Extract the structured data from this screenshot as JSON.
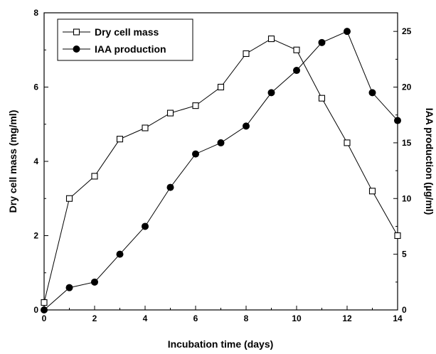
{
  "chart_data": {
    "type": "line",
    "xlabel": "Incubation time (days)",
    "ylabel_left": "Dry cell mass (mg/ml)",
    "ylabel_right": "IAA production (µg/ml)",
    "xlim": [
      0,
      14
    ],
    "ylim_left": [
      0,
      8
    ],
    "ylim_right": [
      0,
      26.67
    ],
    "x_ticks": [
      0,
      2,
      4,
      6,
      8,
      10,
      12,
      14
    ],
    "y_left_ticks": [
      0,
      2,
      4,
      6,
      8
    ],
    "y_right_ticks": [
      0,
      5,
      10,
      15,
      20,
      25
    ],
    "grid": false,
    "legend_position": "top-left",
    "series": [
      {
        "name": "Dry cell mass",
        "axis": "left",
        "marker": "open-square",
        "x": [
          0,
          1,
          2,
          3,
          4,
          5,
          6,
          7,
          8,
          9,
          10,
          11,
          12,
          13,
          14
        ],
        "values": [
          0.2,
          3.0,
          3.6,
          4.6,
          4.9,
          5.3,
          5.5,
          6.0,
          6.9,
          7.3,
          7.0,
          5.7,
          4.5,
          3.2,
          2.0
        ]
      },
      {
        "name": "IAA production",
        "axis": "right",
        "marker": "filled-circle",
        "x": [
          0,
          1,
          2,
          3,
          4,
          5,
          6,
          7,
          8,
          9,
          10,
          11,
          12,
          13,
          14
        ],
        "values": [
          0,
          2.0,
          2.5,
          5.0,
          7.5,
          11.0,
          14.0,
          15.0,
          16.5,
          19.5,
          21.5,
          24.0,
          25.0,
          19.5,
          17.0
        ]
      }
    ]
  }
}
